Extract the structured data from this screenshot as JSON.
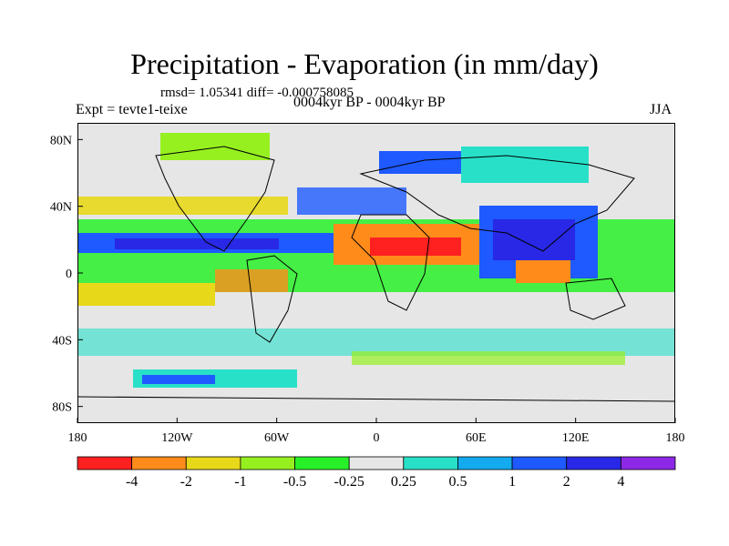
{
  "figure": {
    "title": "Precipitation - Evaporation (in mm/day)",
    "stats": "rmsd= 1.05341 diff= -0.000758085",
    "experiment": "Expt = tevte1-teixe",
    "period": "0004kyr BP - 0004kyr BP",
    "season": "JJA"
  },
  "map": {
    "projection": "cylindrical equidistant",
    "lon_range": [
      -180,
      180
    ],
    "lat_range": [
      -90,
      90
    ],
    "x_ticks": [
      {
        "value": -180,
        "label": "180"
      },
      {
        "value": -120,
        "label": "120W"
      },
      {
        "value": -60,
        "label": "60W"
      },
      {
        "value": 0,
        "label": "0"
      },
      {
        "value": 60,
        "label": "60E"
      },
      {
        "value": 120,
        "label": "120E"
      },
      {
        "value": 180,
        "label": "180"
      }
    ],
    "y_ticks": [
      {
        "value": 80,
        "label": "80N"
      },
      {
        "value": 40,
        "label": "40N"
      },
      {
        "value": 0,
        "label": "0"
      },
      {
        "value": -40,
        "label": "40S"
      },
      {
        "value": -80,
        "label": "80S"
      }
    ],
    "background_color": "#e6e6e6",
    "coastline_color": "#000000"
  },
  "colorbar": {
    "colors": [
      "#ff2020",
      "#ff8c1a",
      "#e8d81a",
      "#96f020",
      "#28f028",
      "#e6e6e6",
      "#28e0c8",
      "#14aaf0",
      "#1e5aff",
      "#2828e6",
      "#8c28e6"
    ],
    "labels": [
      "-4",
      "-2",
      "-1",
      "-0.5",
      "-0.25",
      "0.25",
      "0.5",
      "1",
      "2",
      "4"
    ]
  }
}
